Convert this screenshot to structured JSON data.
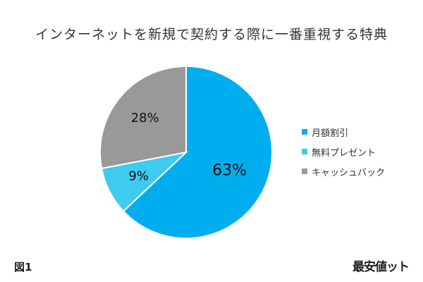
{
  "chart_data": {
    "type": "pie",
    "title": "インターネットを新規で契約する際に一番重視する特典",
    "categories": [
      "月額割引",
      "無料プレゼント",
      "キャッシュバック"
    ],
    "values": [
      63,
      9,
      28
    ],
    "labels": [
      "63%",
      "9%",
      "28%"
    ],
    "colors": [
      "#00aeef",
      "#3fcbee",
      "#999999"
    ],
    "legend_position": "right",
    "start": "top",
    "direction": "clockwise"
  },
  "figure_label": "図1",
  "logo": "最安値ット"
}
